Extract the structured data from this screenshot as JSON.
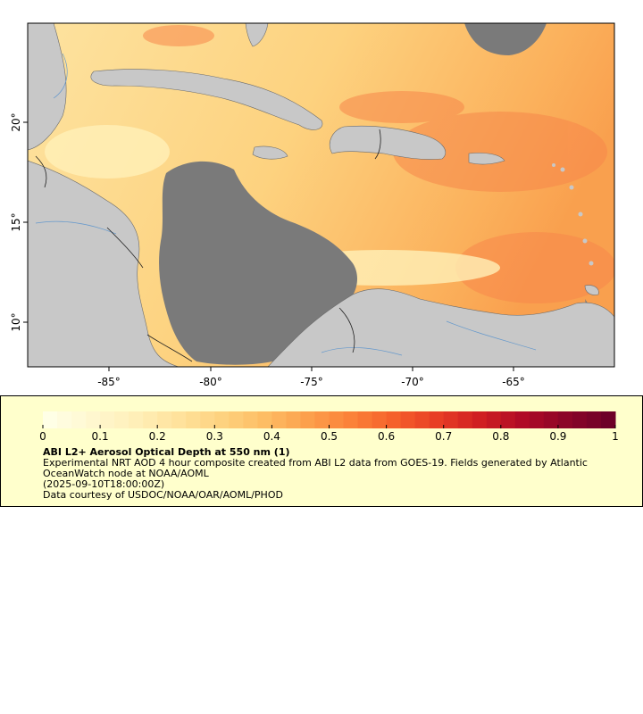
{
  "map": {
    "x_ticks": [
      "-85°",
      "-80°",
      "-75°",
      "-70°",
      "-65°"
    ],
    "y_ticks": [
      "20°",
      "15°",
      "10°"
    ],
    "land_color": "#c8c8c8",
    "nodata_color": "#7a7a7a"
  },
  "legend": {
    "ticks": [
      "0",
      "0.1",
      "0.2",
      "0.3",
      "0.4",
      "0.5",
      "0.6",
      "0.7",
      "0.8",
      "0.9",
      "1"
    ],
    "title": "ABI L2+ Aerosol Optical Depth at 550 nm (1)",
    "description": "Experimental NRT AOD 4 hour composite created from ABI L2 data from GOES-19. Fields generated by Atlantic OceanWatch node at NOAA/AOML",
    "timestamp": "(2025-09-10T18:00:00Z)",
    "credit": "Data courtesy of USDOC/NOAA/OAR/AOML/PHOD",
    "colors": [
      "#ffffe6",
      "#fff7cf",
      "#ffefb8",
      "#ffe29c",
      "#fdd27f",
      "#fdbd64",
      "#fca04c",
      "#fb8239",
      "#f5612b",
      "#e83e25",
      "#d01f22",
      "#b00b26",
      "#8c0528",
      "#6e0028"
    ]
  }
}
